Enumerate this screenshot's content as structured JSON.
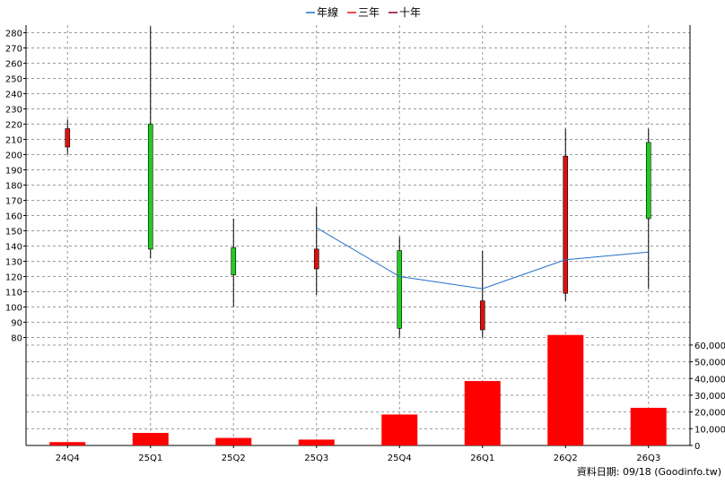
{
  "legend": [
    {
      "label": "年線",
      "color": "#1f6fc9"
    },
    {
      "label": "三年",
      "color": "#e01010"
    },
    {
      "label": "十年",
      "color": "#8b0020"
    }
  ],
  "source_note": "資料日期: 09/18  (Goodinfo.tw)",
  "chart_data": [
    {
      "type": "candlestick",
      "categories": [
        "24Q4",
        "25Q1",
        "25Q2",
        "25Q3",
        "25Q4",
        "26Q1",
        "26Q2",
        "26Q3"
      ],
      "ylim": [
        75,
        285
      ],
      "yticks": [
        80,
        90,
        100,
        110,
        120,
        130,
        140,
        150,
        160,
        170,
        180,
        190,
        200,
        210,
        220,
        230,
        240,
        250,
        260,
        270,
        280
      ],
      "candles": [
        {
          "open": 217,
          "close": 205,
          "high": 223,
          "low": 200
        },
        {
          "open": 138,
          "close": 220,
          "high": 284,
          "low": 132
        },
        {
          "open": 121,
          "close": 139,
          "high": 158,
          "low": 100
        },
        {
          "open": 138,
          "close": 125,
          "high": 166,
          "low": 108
        },
        {
          "open": 86,
          "close": 137,
          "high": 146,
          "low": 80
        },
        {
          "open": 104,
          "close": 85,
          "high": 137,
          "low": 80
        },
        {
          "open": 199,
          "close": 109,
          "high": 217,
          "low": 104
        },
        {
          "open": 158,
          "close": 208,
          "high": 217,
          "low": 112
        }
      ],
      "up_color": "#22cc22",
      "down_color": "#dd1111",
      "series": [
        {
          "name": "年線",
          "values": [
            null,
            null,
            null,
            152,
            120,
            112,
            131,
            136
          ]
        }
      ]
    },
    {
      "type": "bar",
      "categories": [
        "24Q4",
        "25Q1",
        "25Q2",
        "25Q3",
        "25Q4",
        "26Q1",
        "26Q2",
        "26Q3"
      ],
      "values": [
        2000,
        7500,
        4500,
        3500,
        18500,
        38500,
        66000,
        22500
      ],
      "ylim": [
        0,
        68000
      ],
      "yticks": [
        0,
        10000,
        20000,
        30000,
        40000,
        50000,
        60000
      ],
      "ytick_labels": [
        "0",
        "10,000",
        "20,000",
        "30,000",
        "40,000",
        "50,000",
        "60,000"
      ],
      "color": "#ff0000"
    }
  ]
}
